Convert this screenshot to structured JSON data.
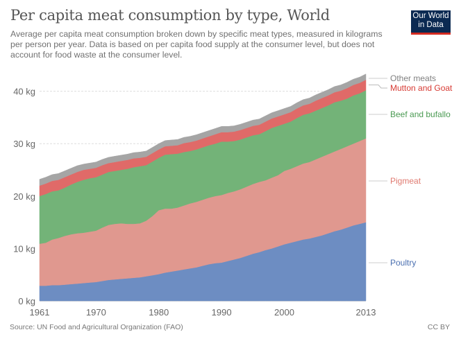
{
  "header": {
    "title": "Per capita meat consumption by type, World",
    "subtitle": "Average per capita meat consumption broken down by specific meat types, measured in kilograms per person per year. Data is based on per capita food supply at the consumer level, but does not account for food waste at the consumer level.",
    "logo_line1": "Our World",
    "logo_line2": "in Data"
  },
  "footer": {
    "source": "Source: UN Food and Agricultural Organization (FAO)",
    "license": "CC BY"
  },
  "chart_data": {
    "type": "area",
    "stacked": true,
    "title": "Per capita meat consumption by type, World",
    "xlabel": "",
    "ylabel": "",
    "x_range": [
      1961,
      2013
    ],
    "ylim": [
      0,
      45
    ],
    "y_ticks": [
      0,
      10,
      20,
      30,
      40
    ],
    "y_tick_labels": [
      "0 kg",
      "10 kg",
      "20 kg",
      "30 kg",
      "40 kg"
    ],
    "x_ticks": [
      1961,
      1970,
      1980,
      1990,
      2000,
      2013
    ],
    "x_tick_labels": [
      "1961",
      "1970",
      "1980",
      "1990",
      "2000",
      "2013"
    ],
    "grid": "horizontal-dashed",
    "legend": "right-inline",
    "x": [
      1961,
      1962,
      1963,
      1964,
      1965,
      1966,
      1967,
      1968,
      1969,
      1970,
      1971,
      1972,
      1973,
      1974,
      1975,
      1976,
      1977,
      1978,
      1979,
      1980,
      1981,
      1982,
      1983,
      1984,
      1985,
      1986,
      1987,
      1988,
      1989,
      1990,
      1991,
      1992,
      1993,
      1994,
      1995,
      1996,
      1997,
      1998,
      1999,
      2000,
      2001,
      2002,
      2003,
      2004,
      2005,
      2006,
      2007,
      2008,
      2009,
      2010,
      2011,
      2012,
      2013
    ],
    "series": [
      {
        "name": "Poultry",
        "color": "#6d8dc2",
        "label_color": "#4a6fb0",
        "values": [
          2.9,
          2.9,
          3.0,
          3.0,
          3.1,
          3.2,
          3.3,
          3.4,
          3.5,
          3.6,
          3.8,
          4.0,
          4.1,
          4.2,
          4.3,
          4.4,
          4.5,
          4.7,
          4.9,
          5.1,
          5.4,
          5.6,
          5.8,
          6.0,
          6.2,
          6.4,
          6.7,
          7.0,
          7.2,
          7.3,
          7.6,
          7.9,
          8.2,
          8.6,
          9.0,
          9.3,
          9.7,
          10.0,
          10.4,
          10.8,
          11.1,
          11.4,
          11.7,
          11.9,
          12.2,
          12.5,
          12.9,
          13.3,
          13.6,
          14.0,
          14.4,
          14.7,
          15.0
        ]
      },
      {
        "name": "Pigmeat",
        "color": "#e0988f",
        "label_color": "#e07a70",
        "values": [
          8.0,
          8.2,
          8.7,
          9.0,
          9.3,
          9.5,
          9.6,
          9.6,
          9.7,
          9.8,
          10.2,
          10.5,
          10.6,
          10.6,
          10.4,
          10.3,
          10.3,
          10.6,
          11.3,
          12.2,
          12.2,
          12.0,
          12.0,
          12.2,
          12.4,
          12.5,
          12.6,
          12.7,
          12.8,
          12.9,
          13.0,
          13.0,
          13.1,
          13.2,
          13.3,
          13.4,
          13.3,
          13.5,
          13.6,
          14.0,
          14.1,
          14.3,
          14.5,
          14.6,
          14.8,
          15.0,
          15.1,
          15.2,
          15.4,
          15.5,
          15.6,
          15.8,
          16.0
        ]
      },
      {
        "name": "Beef and bufallo",
        "color": "#73b378",
        "label_color": "#4a9a52",
        "values": [
          9.1,
          9.3,
          9.2,
          9.1,
          9.2,
          9.5,
          9.8,
          10.1,
          10.2,
          10.2,
          10.1,
          10.1,
          10.1,
          10.2,
          10.5,
          10.8,
          10.9,
          10.6,
          10.4,
          10.0,
          10.3,
          10.4,
          10.3,
          10.2,
          10.0,
          10.0,
          10.0,
          10.0,
          10.0,
          10.2,
          9.8,
          9.6,
          9.5,
          9.4,
          9.3,
          9.1,
          9.4,
          9.5,
          9.4,
          9.0,
          9.0,
          9.2,
          9.3,
          9.3,
          9.3,
          9.3,
          9.3,
          9.4,
          9.2,
          9.1,
          9.2,
          9.1,
          9.2
        ]
      },
      {
        "name": "Mutton and Goat",
        "color": "#e06a68",
        "label_color": "#d73a33",
        "values": [
          2.0,
          2.0,
          2.0,
          2.0,
          2.0,
          1.9,
          1.9,
          1.9,
          1.8,
          1.8,
          1.8,
          1.7,
          1.7,
          1.7,
          1.7,
          1.7,
          1.6,
          1.6,
          1.6,
          1.6,
          1.6,
          1.6,
          1.6,
          1.7,
          1.7,
          1.7,
          1.7,
          1.7,
          1.8,
          1.8,
          1.8,
          1.8,
          1.8,
          1.8,
          1.8,
          1.8,
          1.8,
          1.8,
          1.8,
          1.8,
          1.8,
          1.8,
          1.8,
          1.8,
          1.9,
          1.9,
          1.9,
          1.9,
          1.9,
          2.0,
          2.0,
          2.0,
          2.0
        ]
      },
      {
        "name": "Other meats",
        "color": "#a5a5a5",
        "label_color": "#808080",
        "values": [
          1.2,
          1.2,
          1.2,
          1.2,
          1.2,
          1.2,
          1.2,
          1.1,
          1.1,
          1.1,
          1.1,
          1.1,
          1.1,
          1.1,
          1.1,
          1.1,
          1.1,
          1.1,
          1.1,
          1.1,
          1.1,
          1.1,
          1.1,
          1.1,
          1.1,
          1.1,
          1.1,
          1.1,
          1.1,
          1.1,
          1.1,
          1.1,
          1.1,
          1.1,
          1.1,
          1.1,
          1.1,
          1.1,
          1.1,
          1.1,
          1.1,
          1.1,
          1.1,
          1.1,
          1.1,
          1.1,
          1.1,
          1.1,
          1.1,
          1.1,
          1.1,
          1.1,
          1.1
        ]
      }
    ]
  }
}
